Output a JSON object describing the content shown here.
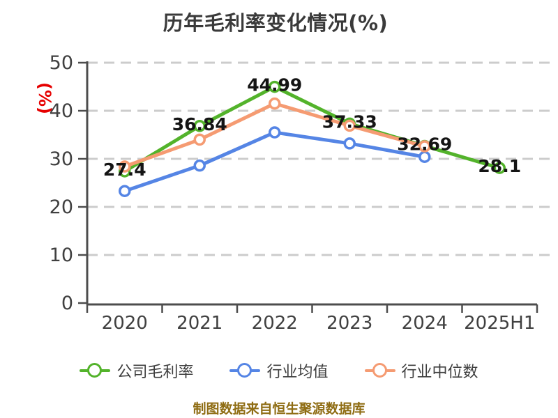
{
  "chart_data": {
    "type": "line",
    "title": "历年毛利率变化情况(%)",
    "y_unit_label": "(%)",
    "categories": [
      "2020",
      "2021",
      "2022",
      "2023",
      "2024",
      "2025H1"
    ],
    "series": [
      {
        "name": "公司毛利率",
        "color": "#53b32b",
        "values": [
          27.4,
          36.84,
          44.99,
          37.33,
          32.69,
          28.1
        ],
        "point_labels": [
          "27.4",
          "36.84",
          "44.99",
          "37.33",
          "32.69",
          "28.1"
        ]
      },
      {
        "name": "行业均值",
        "color": "#5585e5",
        "values": [
          23.3,
          28.6,
          35.5,
          33.2,
          30.4,
          null
        ],
        "point_labels": null
      },
      {
        "name": "行业中位数",
        "color": "#f59b72",
        "values": [
          28.4,
          34.0,
          41.5,
          36.9,
          32.6,
          null
        ],
        "point_labels": null
      }
    ],
    "ylim": [
      0,
      50
    ],
    "yticks": [
      0,
      10,
      20,
      30,
      40,
      50
    ],
    "grid": "horizontal-dashed",
    "legend_position": "bottom"
  },
  "footer": {
    "source_note": "制图数据来自恒生聚源数据库"
  },
  "colors": {
    "title": "#3a3a3a",
    "axis": "#4d4d4d",
    "tick_label": "#404040",
    "grid": "#cccccc",
    "unit_label": "#e60000",
    "point_label": "#141414",
    "footer": "#8f6d14",
    "background": "#ffffff"
  }
}
